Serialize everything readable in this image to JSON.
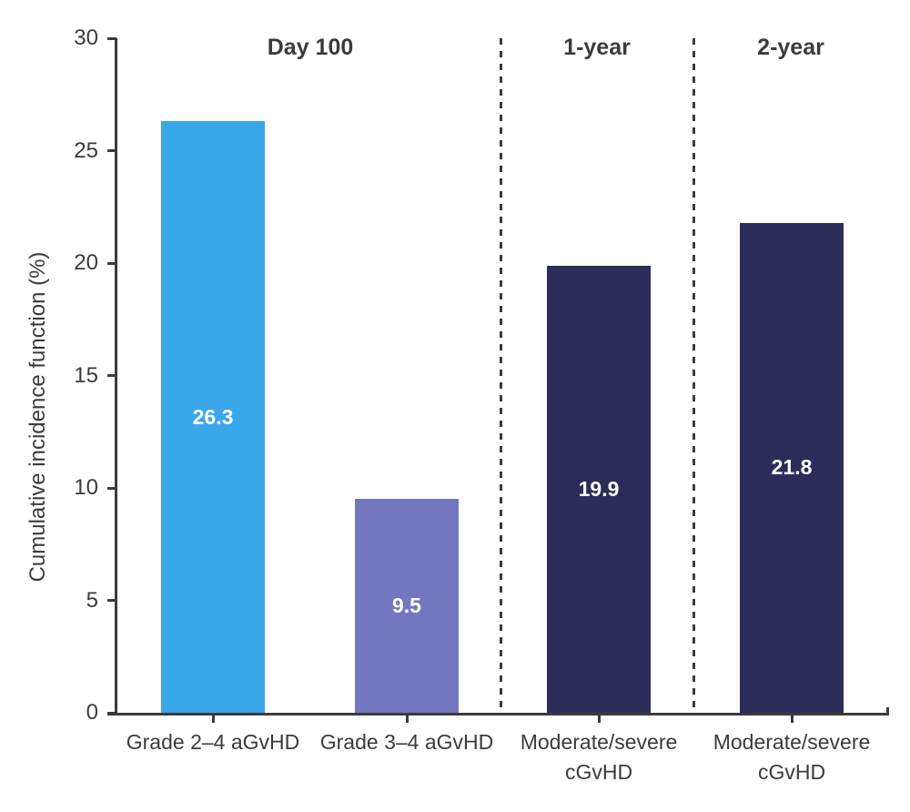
{
  "chart_data": {
    "type": "bar",
    "title": "",
    "ylabel": "Cumulative incidence function (%)",
    "xlabel": "",
    "ylim": [
      0,
      30
    ],
    "yticks": [
      0,
      5,
      10,
      15,
      20,
      25,
      30
    ],
    "grid": false,
    "legend": false,
    "section_headers": [
      {
        "label": "Day 100"
      },
      {
        "label": "1-year"
      },
      {
        "label": "2-year"
      }
    ],
    "bars": [
      {
        "category": "Grade 2–4 aGvHD",
        "section": "Day 100",
        "value": 26.3,
        "color": "#3aa7eb"
      },
      {
        "category": "Grade 3–4 aGvHD",
        "section": "Day 100",
        "value": 9.5,
        "color": "#7377c0"
      },
      {
        "category": "Moderate/severe\ncGvHD",
        "section": "1-year",
        "value": 19.9,
        "color": "#2b2d58"
      },
      {
        "category": "Moderate/severe\ncGvHD",
        "section": "2-year",
        "value": 21.8,
        "color": "#2b2d58"
      }
    ],
    "colors": {
      "axis": "#3b3b3b",
      "value_label": "#ffffff",
      "bar_day100_grade24": "#3aa7eb",
      "bar_day100_grade34": "#7377c0",
      "bar_cgvhd": "#2b2d58"
    }
  }
}
